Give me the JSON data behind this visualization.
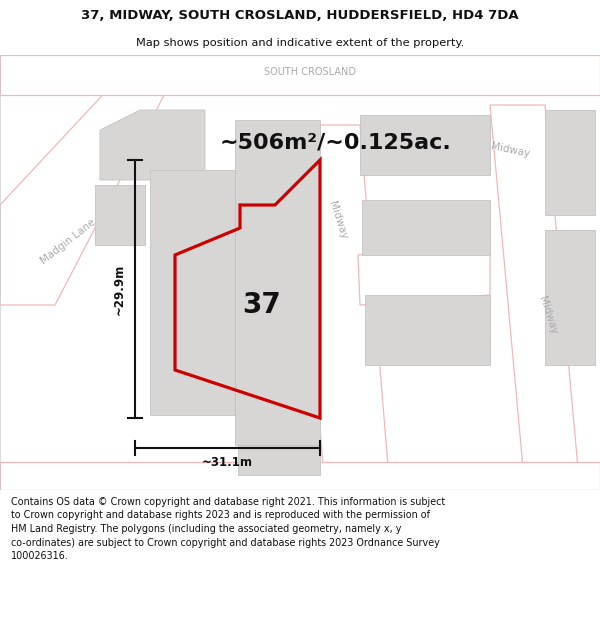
{
  "title_line1": "37, MIDWAY, SOUTH CROSLAND, HUDDERSFIELD, HD4 7DA",
  "title_line2": "Map shows position and indicative extent of the property.",
  "area_text": "~506m²/~0.125ac.",
  "width_text": "~31.1m",
  "height_text": "~29.9m",
  "number_text": "37",
  "label_south_crosland": "SOUTH CROSLAND",
  "label_madgin_lane": "Madgin Lane",
  "label_midway_center": "Midway",
  "label_midway_right_top": "Midway",
  "label_midway_right_bot": "Midway",
  "footer_text": "Contains OS data © Crown copyright and database right 2021. This information is subject to Crown copyright and database rights 2023 and is reproduced with the permission of HM Land Registry. The polygons (including the associated geometry, namely x, y co-ordinates) are subject to Crown copyright and database rights 2023 Ordnance Survey 100026316.",
  "map_bg": "#f2f0f0",
  "road_fill": "#ffffff",
  "road_edge": "#f0b8b8",
  "building_fill": "#d8d5d5",
  "building_edge": "#c5c2c2",
  "property_edge": "#cc0000",
  "dim_color": "#111111",
  "street_color": "#aaaaaa",
  "text_dark": "#111111",
  "white": "#ffffff"
}
